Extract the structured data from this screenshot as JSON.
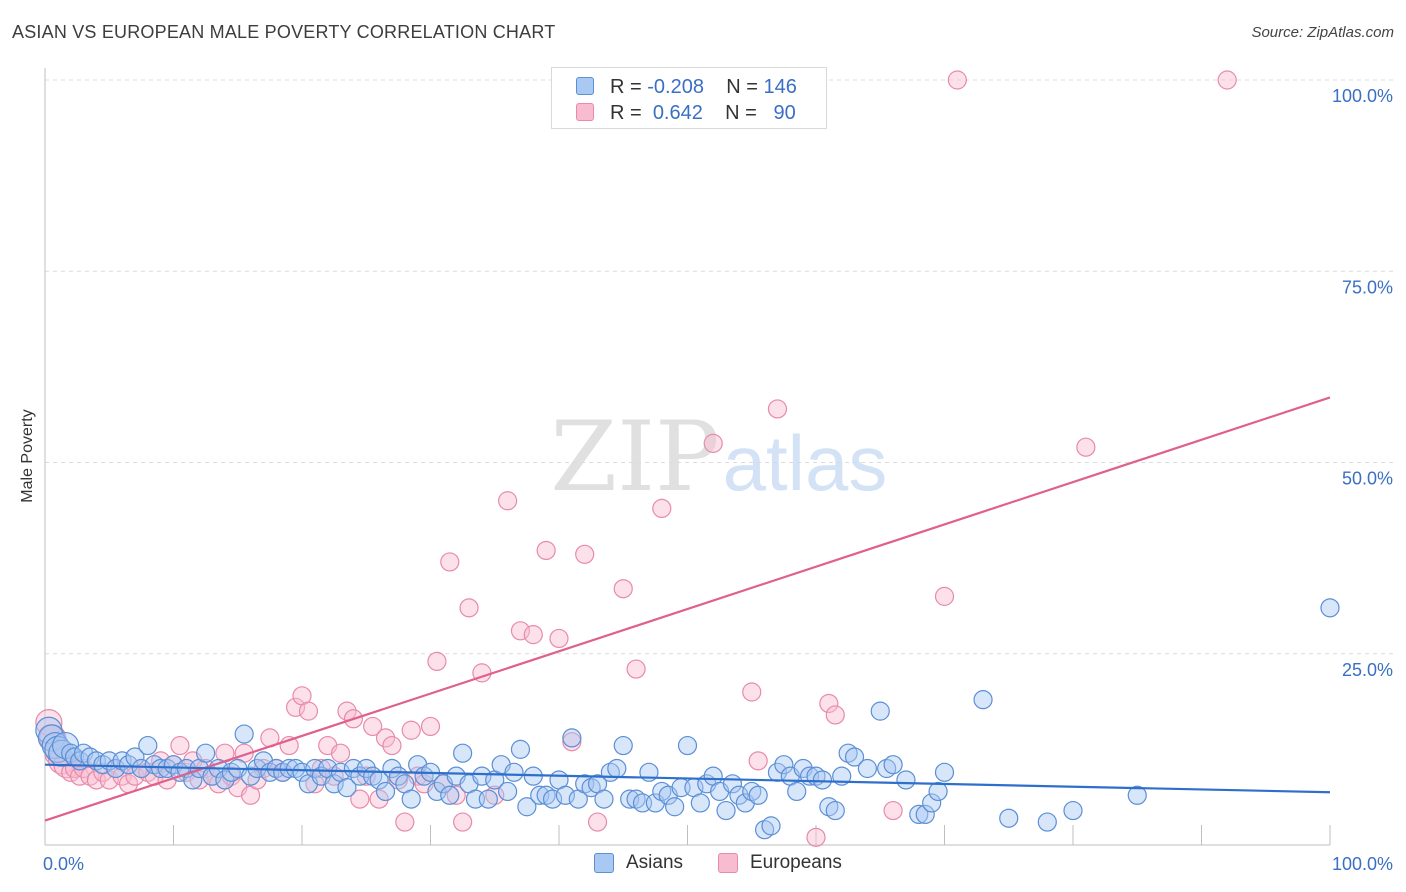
{
  "title": "ASIAN VS EUROPEAN MALE POVERTY CORRELATION CHART",
  "source": "Source: ZipAtlas.com",
  "watermark": {
    "zip": "ZIP",
    "atlas": "atlas"
  },
  "legend": {
    "asians": {
      "r_label": "R =",
      "r_value": "-0.208",
      "n_label": "N =",
      "n_value": "146"
    },
    "europeans": {
      "r_label": "R =",
      "r_value": "0.642",
      "n_label": "N =",
      "n_value": "90"
    }
  },
  "colors": {
    "asian_fill": "#a9c8f2",
    "asian_stroke": "#5b8fd6",
    "asian_line": "#2f6fcc",
    "euro_fill": "#f8bcd0",
    "euro_stroke": "#e88aaa",
    "euro_line": "#e0608c",
    "axis_text": "#3a6fc4"
  },
  "chart_data": {
    "type": "scatter",
    "title": "ASIAN VS EUROPEAN MALE POVERTY CORRELATION CHART",
    "xlabel": "",
    "ylabel": "Male Poverty",
    "xlim": [
      0,
      100
    ],
    "ylim": [
      0,
      100
    ],
    "x_tick_labels": [
      "0.0%",
      "100.0%"
    ],
    "y_tick_labels": [
      "25.0%",
      "50.0%",
      "75.0%",
      "100.0%"
    ],
    "y_ticks": [
      25,
      50,
      75,
      100
    ],
    "grid": true,
    "legend_placement": "top-center",
    "series": [
      {
        "name": "Asians",
        "r": -0.208,
        "n": 146,
        "trend": [
          [
            0,
            10.5
          ],
          [
            100,
            6.9
          ]
        ],
        "points": [
          [
            0.3,
            15
          ],
          [
            0.5,
            14
          ],
          [
            0.8,
            13
          ],
          [
            1,
            12.5
          ],
          [
            1.3,
            12
          ],
          [
            1.6,
            13
          ],
          [
            2,
            12
          ],
          [
            2.3,
            11.5
          ],
          [
            2.7,
            11
          ],
          [
            3,
            12
          ],
          [
            3.5,
            11.5
          ],
          [
            4,
            11
          ],
          [
            4.5,
            10.5
          ],
          [
            5,
            11
          ],
          [
            5.5,
            10
          ],
          [
            6,
            11
          ],
          [
            6.5,
            10.5
          ],
          [
            7,
            11.5
          ],
          [
            7.5,
            10
          ],
          [
            8,
            13
          ],
          [
            8.5,
            10.5
          ],
          [
            9,
            10
          ],
          [
            9.5,
            10
          ],
          [
            10,
            10.5
          ],
          [
            10.5,
            9.5
          ],
          [
            11,
            10
          ],
          [
            11.5,
            8.5
          ],
          [
            12,
            10
          ],
          [
            12.5,
            12
          ],
          [
            13,
            9
          ],
          [
            13.5,
            10
          ],
          [
            14,
            8.5
          ],
          [
            14.5,
            9.5
          ],
          [
            15,
            10
          ],
          [
            15.5,
            14.5
          ],
          [
            16,
            9
          ],
          [
            16.5,
            10
          ],
          [
            17,
            11
          ],
          [
            17.5,
            9.5
          ],
          [
            18,
            10
          ],
          [
            18.5,
            9.5
          ],
          [
            19,
            10
          ],
          [
            19.5,
            10
          ],
          [
            20,
            9.5
          ],
          [
            20.5,
            8
          ],
          [
            21,
            10
          ],
          [
            21.5,
            9
          ],
          [
            22,
            10
          ],
          [
            22.5,
            8
          ],
          [
            23,
            9.5
          ],
          [
            23.5,
            7.5
          ],
          [
            24,
            10
          ],
          [
            24.5,
            9
          ],
          [
            25,
            10
          ],
          [
            25.5,
            9
          ],
          [
            26,
            8.5
          ],
          [
            26.5,
            7
          ],
          [
            27,
            10
          ],
          [
            27.5,
            9
          ],
          [
            28,
            8
          ],
          [
            28.5,
            6
          ],
          [
            29,
            10.5
          ],
          [
            29.5,
            9
          ],
          [
            30,
            9.5
          ],
          [
            30.5,
            7
          ],
          [
            31,
            8
          ],
          [
            31.5,
            6.5
          ],
          [
            32,
            9
          ],
          [
            32.5,
            12
          ],
          [
            33,
            8
          ],
          [
            33.5,
            6
          ],
          [
            34,
            9
          ],
          [
            34.5,
            6
          ],
          [
            35,
            8.5
          ],
          [
            35.5,
            10.5
          ],
          [
            36,
            7
          ],
          [
            36.5,
            9.5
          ],
          [
            37,
            12.5
          ],
          [
            37.5,
            5
          ],
          [
            38,
            9
          ],
          [
            38.5,
            6.5
          ],
          [
            39,
            6.5
          ],
          [
            39.5,
            6
          ],
          [
            40,
            8.5
          ],
          [
            40.5,
            6.5
          ],
          [
            41,
            14
          ],
          [
            41.5,
            6
          ],
          [
            42,
            8
          ],
          [
            42.5,
            7.5
          ],
          [
            43,
            8
          ],
          [
            43.5,
            6
          ],
          [
            44,
            9.5
          ],
          [
            44.5,
            10
          ],
          [
            45,
            13
          ],
          [
            45.5,
            6
          ],
          [
            46,
            6
          ],
          [
            46.5,
            5.5
          ],
          [
            47,
            9.5
          ],
          [
            47.5,
            5.5
          ],
          [
            48,
            7
          ],
          [
            48.5,
            6.5
          ],
          [
            49,
            5
          ],
          [
            49.5,
            7.5
          ],
          [
            50,
            13
          ],
          [
            50.5,
            7.5
          ],
          [
            51,
            5.5
          ],
          [
            51.5,
            8
          ],
          [
            52,
            9
          ],
          [
            52.5,
            7
          ],
          [
            53,
            4.5
          ],
          [
            53.5,
            8
          ],
          [
            54,
            6.5
          ],
          [
            54.5,
            5.5
          ],
          [
            55,
            7
          ],
          [
            55.5,
            6.5
          ],
          [
            56,
            2
          ],
          [
            56.5,
            2.5
          ],
          [
            57,
            9.5
          ],
          [
            57.5,
            10.5
          ],
          [
            58,
            9
          ],
          [
            58.5,
            7
          ],
          [
            59,
            10
          ],
          [
            59.5,
            9
          ],
          [
            60,
            9
          ],
          [
            60.5,
            8.5
          ],
          [
            61,
            5
          ],
          [
            61.5,
            4.5
          ],
          [
            62,
            9
          ],
          [
            62.5,
            12
          ],
          [
            63,
            11.5
          ],
          [
            64,
            10
          ],
          [
            65,
            17.5
          ],
          [
            65.5,
            10
          ],
          [
            66,
            10.5
          ],
          [
            67,
            8.5
          ],
          [
            68,
            4
          ],
          [
            68.5,
            4
          ],
          [
            69,
            5.5
          ],
          [
            69.5,
            7
          ],
          [
            70,
            9.5
          ],
          [
            73,
            19
          ],
          [
            75,
            3.5
          ],
          [
            78,
            3
          ],
          [
            80,
            4.5
          ],
          [
            85,
            6.5
          ],
          [
            100,
            31
          ]
        ]
      },
      {
        "name": "Europeans",
        "r": 0.642,
        "n": 90,
        "trend": [
          [
            0,
            3.2
          ],
          [
            100,
            58.5
          ]
        ],
        "points": [
          [
            0.3,
            16
          ],
          [
            0.6,
            14
          ],
          [
            1,
            12
          ],
          [
            1.3,
            11
          ],
          [
            1.7,
            10.5
          ],
          [
            2,
            9.5
          ],
          [
            2.3,
            10
          ],
          [
            2.7,
            9
          ],
          [
            3,
            10
          ],
          [
            3.5,
            9
          ],
          [
            4,
            8.5
          ],
          [
            4.5,
            9.5
          ],
          [
            5,
            8.5
          ],
          [
            5.5,
            10
          ],
          [
            6,
            9
          ],
          [
            6.5,
            8
          ],
          [
            7,
            9
          ],
          [
            7.5,
            10
          ],
          [
            8,
            9.5
          ],
          [
            8.5,
            9
          ],
          [
            9,
            11
          ],
          [
            9.5,
            8.5
          ],
          [
            10,
            10.5
          ],
          [
            10.5,
            13
          ],
          [
            11,
            9.5
          ],
          [
            11.5,
            11
          ],
          [
            12,
            8.5
          ],
          [
            12.5,
            10
          ],
          [
            13,
            9
          ],
          [
            13.5,
            8
          ],
          [
            14,
            12
          ],
          [
            14.5,
            9
          ],
          [
            15,
            7.5
          ],
          [
            15.5,
            12
          ],
          [
            16,
            6.5
          ],
          [
            16.5,
            8.5
          ],
          [
            17,
            10
          ],
          [
            17.5,
            14
          ],
          [
            18,
            10
          ],
          [
            18.5,
            9.5
          ],
          [
            19,
            13
          ],
          [
            19.5,
            18
          ],
          [
            20,
            19.5
          ],
          [
            20.5,
            17.5
          ],
          [
            21,
            8
          ],
          [
            21.5,
            10
          ],
          [
            22,
            13
          ],
          [
            22.5,
            9
          ],
          [
            23,
            12
          ],
          [
            23.5,
            17.5
          ],
          [
            24,
            16.5
          ],
          [
            24.5,
            6
          ],
          [
            25,
            9
          ],
          [
            25.5,
            15.5
          ],
          [
            26,
            6
          ],
          [
            26.5,
            14
          ],
          [
            27,
            13
          ],
          [
            27.5,
            8.5
          ],
          [
            28,
            3
          ],
          [
            28.5,
            15
          ],
          [
            29,
            9
          ],
          [
            29.5,
            8
          ],
          [
            30,
            15.5
          ],
          [
            30.5,
            24
          ],
          [
            31,
            8
          ],
          [
            31.5,
            37
          ],
          [
            32,
            6.5
          ],
          [
            32.5,
            3
          ],
          [
            33,
            31
          ],
          [
            34,
            22.5
          ],
          [
            35,
            6.5
          ],
          [
            36,
            45
          ],
          [
            37,
            28
          ],
          [
            38,
            27.5
          ],
          [
            39,
            38.5
          ],
          [
            40,
            27
          ],
          [
            41,
            13.5
          ],
          [
            42,
            38
          ],
          [
            43,
            3
          ],
          [
            45,
            33.5
          ],
          [
            46,
            23
          ],
          [
            48,
            44
          ],
          [
            52,
            52.5
          ],
          [
            55,
            20
          ],
          [
            55.5,
            11
          ],
          [
            57,
            57
          ],
          [
            61,
            18.5
          ],
          [
            61.5,
            17
          ],
          [
            66,
            4.5
          ],
          [
            70,
            32.5
          ],
          [
            71,
            100
          ],
          [
            81,
            52
          ],
          [
            92,
            100
          ],
          [
            60,
            1
          ]
        ]
      }
    ]
  },
  "axis": {
    "y_title": "Male Poverty",
    "x_left": "0.0%",
    "x_right": "100.0%"
  }
}
